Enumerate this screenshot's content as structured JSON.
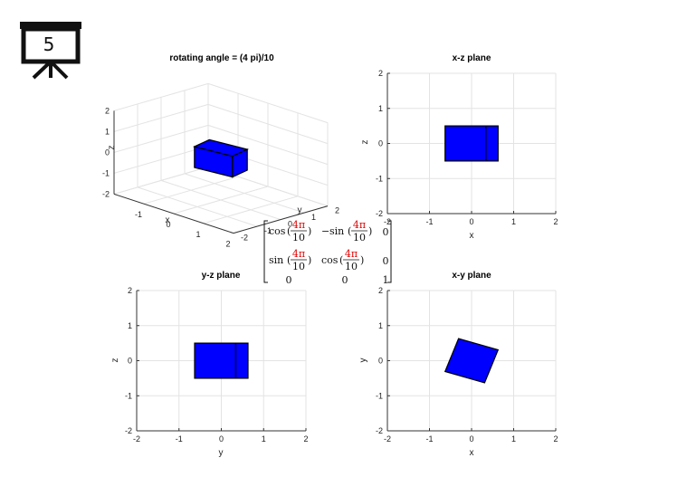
{
  "slide_badge": {
    "number": "5",
    "icon": "presentation-board-icon"
  },
  "colors": {
    "face": "#0000ff",
    "edge": "#000000",
    "grid": "#e3e3e3",
    "axis": "#333333",
    "accent": "#e00000"
  },
  "rotation_matrix": {
    "rows": [
      {
        "c1": {
          "fn": "cos",
          "num": "4π",
          "den": "10"
        },
        "c2": {
          "sign": "−",
          "fn": "sin",
          "num": "4π",
          "den": "10"
        },
        "c3": "0"
      },
      {
        "c1": {
          "fn": "sin",
          "num": "4π",
          "den": "10"
        },
        "c2": {
          "sign": "",
          "fn": "cos",
          "num": "4π",
          "den": "10"
        },
        "c3": "0"
      },
      {
        "c1": "0",
        "c2": "0",
        "c3": "1"
      }
    ]
  },
  "chart_data": [
    {
      "type": "3d-surface",
      "title": "rotating angle = (4 pi)/10",
      "xlabel": "x",
      "ylabel": "y",
      "zlabel": "z",
      "xlim": [
        -2,
        2
      ],
      "ylim": [
        -2,
        2
      ],
      "zlim": [
        -2,
        2
      ],
      "xticks": [
        "-1",
        "0",
        "1",
        "2"
      ],
      "yticks": [
        "-2",
        "-1",
        "0",
        "1",
        "2"
      ],
      "zticks": [
        "-2",
        "-1",
        "0",
        "1",
        "2"
      ],
      "grid": true,
      "box": {
        "corners_xy": [
          [
            0.63,
            -0.31
          ],
          [
            0.49,
            0.5
          ],
          [
            -0.63,
            0.31
          ],
          [
            -0.49,
            -0.5
          ]
        ],
        "z": [
          -0.5,
          0.5
        ]
      }
    },
    {
      "type": "polygon",
      "title": "x-z plane",
      "xlabel": "x",
      "ylabel": "z",
      "xlim": [
        -2,
        2
      ],
      "ylim": [
        -2,
        2
      ],
      "xticks": [
        "-2",
        "-1",
        "0",
        "1",
        "2"
      ],
      "yticks": [
        "-2",
        "-1",
        "0",
        "1",
        "2"
      ],
      "grid": true,
      "faces": [
        {
          "x": [
            -0.63,
            0.34,
            0.34,
            -0.63
          ],
          "y": [
            -0.5,
            -0.5,
            0.5,
            0.5
          ]
        },
        {
          "x": [
            0.34,
            0.63,
            0.63,
            0.34
          ],
          "y": [
            -0.5,
            -0.5,
            0.5,
            0.5
          ]
        }
      ]
    },
    {
      "type": "polygon",
      "title": "y-z plane",
      "xlabel": "y",
      "ylabel": "z",
      "xlim": [
        -2,
        2
      ],
      "ylim": [
        -2,
        2
      ],
      "xticks": [
        "-2",
        "-1",
        "0",
        "1",
        "2"
      ],
      "yticks": [
        "-2",
        "-1",
        "0",
        "1",
        "2"
      ],
      "grid": true,
      "faces": [
        {
          "x": [
            -0.63,
            0.34,
            0.34,
            -0.63
          ],
          "y": [
            -0.5,
            -0.5,
            0.5,
            0.5
          ]
        },
        {
          "x": [
            0.34,
            0.63,
            0.63,
            0.34
          ],
          "y": [
            -0.5,
            -0.5,
            0.5,
            0.5
          ]
        }
      ]
    },
    {
      "type": "polygon",
      "title": "x-y plane",
      "xlabel": "x",
      "ylabel": "y",
      "xlim": [
        -2,
        2
      ],
      "ylim": [
        -2,
        2
      ],
      "xticks": [
        "-2",
        "-1",
        "0",
        "1",
        "2"
      ],
      "yticks": [
        "-2",
        "-1",
        "0",
        "1",
        "2"
      ],
      "grid": true,
      "faces": [
        {
          "x": [
            -0.31,
            0.63,
            0.31,
            -0.63
          ],
          "y": [
            0.63,
            0.31,
            -0.63,
            -0.31
          ]
        }
      ]
    }
  ]
}
